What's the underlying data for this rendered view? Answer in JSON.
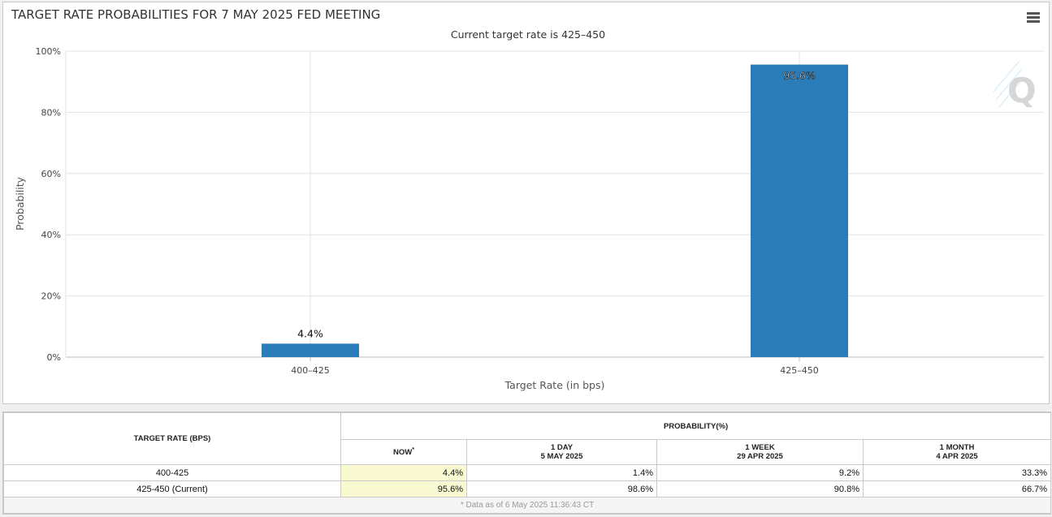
{
  "chart_data": {
    "type": "bar",
    "title": "TARGET RATE PROBABILITIES FOR 7 MAY 2025 FED MEETING",
    "subtitle": "Current target rate is 425–450",
    "xlabel": "Target Rate (in bps)",
    "ylabel": "Probability",
    "categories": [
      "400–425",
      "425–450"
    ],
    "values": [
      4.4,
      95.6
    ],
    "data_labels": [
      "4.4%",
      "95.6%"
    ],
    "ylim": [
      0,
      100
    ],
    "yticks": [
      0,
      20,
      40,
      60,
      80,
      100
    ],
    "ytick_labels": [
      "0%",
      "20%",
      "40%",
      "60%",
      "80%",
      "100%"
    ],
    "grid": true,
    "bar_color": "#2a7db8",
    "legend": "none"
  },
  "menu": {
    "icon": "hamburger-menu-icon"
  },
  "table": {
    "col_rate": "TARGET RATE (BPS)",
    "col_prob": "PROBABILITY(%)",
    "now": {
      "label": "NOW",
      "mark": "*"
    },
    "day": {
      "label": "1 DAY",
      "date": "5 MAY 2025"
    },
    "week": {
      "label": "1 WEEK",
      "date": "29 APR 2025"
    },
    "month": {
      "label": "1 MONTH",
      "date": "4 APR 2025"
    },
    "rows": [
      {
        "rate": "400-425",
        "now": "4.4%",
        "day": "1.4%",
        "week": "9.2%",
        "month": "33.3%"
      },
      {
        "rate": "425-450 (Current)",
        "now": "95.6%",
        "day": "98.6%",
        "week": "90.8%",
        "month": "66.7%"
      }
    ],
    "footnote": "* Data as of 6 May 2025 11:36:43 CT"
  }
}
